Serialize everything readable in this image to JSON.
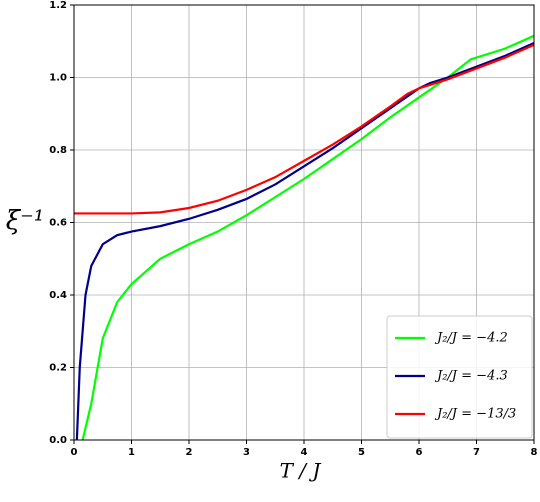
{
  "chart_data": {
    "type": "line",
    "xlabel": "T / J",
    "ylabel": "ξ⁻¹",
    "xlim": [
      0,
      8
    ],
    "ylim": [
      0,
      1.2
    ],
    "xticks": [
      0,
      1,
      2,
      3,
      4,
      5,
      6,
      7,
      8
    ],
    "yticks": [
      {
        "value": 0,
        "label": "0.0"
      },
      0.2,
      0.4,
      0.6,
      0.8,
      {
        "value": 1,
        "label": "1.0"
      },
      1.2
    ],
    "grid": true,
    "legend": "lower right",
    "series": [
      {
        "name": "J₂/J = −4.2",
        "color": "#00ff00",
        "x": [
          0.15,
          0.3,
          0.5,
          0.75,
          1,
          1.5,
          2,
          2.5,
          3,
          3.5,
          4,
          4.5,
          5,
          5.5,
          6,
          6.5,
          6.9,
          7.5,
          8
        ],
        "values": [
          0,
          0.1,
          0.28,
          0.38,
          0.43,
          0.5,
          0.54,
          0.575,
          0.62,
          0.67,
          0.72,
          0.775,
          0.83,
          0.89,
          0.945,
          1.0,
          1.05,
          1.08,
          1.115
        ]
      },
      {
        "name": "J₂/J = −4.3",
        "color": "#00008b",
        "x": [
          0.05,
          0.1,
          0.2,
          0.3,
          0.5,
          0.75,
          1,
          1.5,
          2,
          2.5,
          3,
          3.5,
          4,
          4.5,
          5,
          5.5,
          6,
          6.2,
          6.5,
          7,
          7.5,
          8
        ],
        "values": [
          0,
          0.2,
          0.4,
          0.48,
          0.54,
          0.565,
          0.575,
          0.59,
          0.61,
          0.635,
          0.665,
          0.705,
          0.755,
          0.805,
          0.86,
          0.915,
          0.97,
          0.985,
          1.0,
          1.03,
          1.06,
          1.095
        ]
      },
      {
        "name": "J₂/J = −13/3",
        "color": "#ff0000",
        "x": [
          0,
          0.5,
          1,
          1.5,
          2,
          2.5,
          3,
          3.5,
          4,
          4.5,
          5,
          5.5,
          5.8,
          6,
          6.5,
          7,
          7.5,
          8
        ],
        "values": [
          0.625,
          0.625,
          0.625,
          0.628,
          0.64,
          0.66,
          0.69,
          0.725,
          0.77,
          0.815,
          0.865,
          0.92,
          0.955,
          0.97,
          0.995,
          1.025,
          1.055,
          1.09
        ]
      }
    ]
  }
}
